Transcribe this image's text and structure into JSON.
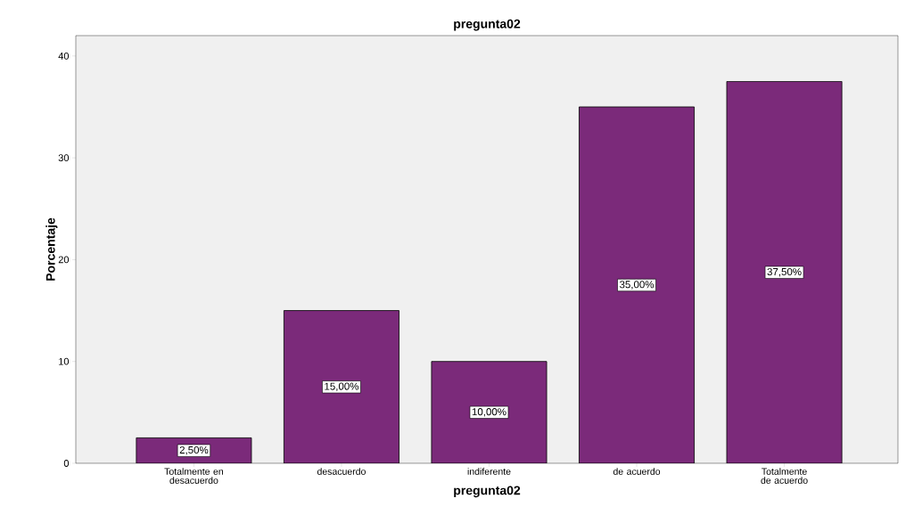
{
  "chart_data": {
    "type": "bar",
    "title": "pregunta02",
    "xlabel": "pregunta02",
    "ylabel": "Porcentaje",
    "categories": [
      "Totalmente en desacuerdo",
      "desacuerdo",
      "indiferente",
      "de acuerdo",
      "Totalmente de acuerdo"
    ],
    "values": [
      2.5,
      15,
      10,
      35,
      37.5
    ],
    "value_labels": [
      "2,50%",
      "15,00%",
      "10,00%",
      "35,00%",
      "37,50%"
    ],
    "color": "#7b2a7a",
    "ylim": [
      0,
      42
    ],
    "yticks": [
      0,
      10,
      20,
      30,
      40
    ]
  }
}
